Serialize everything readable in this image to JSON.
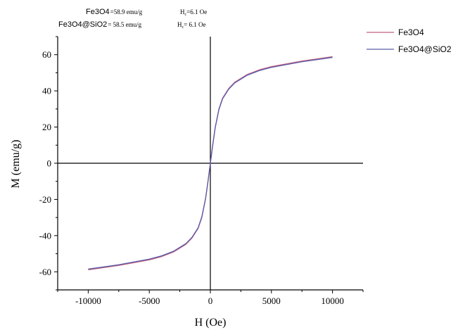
{
  "chart_data": {
    "type": "line",
    "xlabel": "H (Oe)",
    "ylabel": "M (emu/g)",
    "xlim": [
      -12500,
      12500
    ],
    "ylim": [
      -70,
      70
    ],
    "xticks": [
      -10000,
      -5000,
      0,
      5000,
      10000
    ],
    "yticks": [
      -60,
      -40,
      -20,
      0,
      20,
      40,
      60
    ],
    "xticklabels": [
      "-10000",
      "-5000",
      "0",
      "5000",
      "10000"
    ],
    "yticklabels": [
      "-60",
      "-40",
      "-20",
      "0",
      "20",
      "40",
      "60"
    ],
    "grid": false,
    "legend_position": "top-right",
    "annotations": [
      {
        "name": "Fe3O4",
        "ms": "=58.9 emu/g",
        "hc_prefix": "H",
        "hc_sub": "c",
        "hc_value": "=6.1 Oe"
      },
      {
        "name": "Fe3O4@SiO2",
        "ms": "= 58.5 emu/g",
        "hc_prefix": "H",
        "hc_sub": "c",
        "hc_value": "= 6.1 Oe"
      }
    ],
    "series": [
      {
        "name": "Fe3O4",
        "color": "#c06080",
        "x": [
          -10000,
          -7500,
          -5000,
          -4000,
          -3000,
          -2000,
          -1500,
          -1000,
          -700,
          -400,
          -200,
          0,
          200,
          400,
          700,
          1000,
          1500,
          2000,
          3000,
          4000,
          5000,
          7500,
          10000
        ],
        "y": [
          -58.9,
          -56.5,
          -53.4,
          -51.6,
          -49.0,
          -44.8,
          -41.3,
          -36.0,
          -30.0,
          -20.0,
          -10.5,
          0,
          10.5,
          20.0,
          30.0,
          36.0,
          41.3,
          44.8,
          49.0,
          51.6,
          53.4,
          56.5,
          58.9
        ]
      },
      {
        "name": "Fe3O4@SiO2",
        "color": "#5a5aa8",
        "x": [
          -10000,
          -7500,
          -5000,
          -4000,
          -3000,
          -2000,
          -1500,
          -1000,
          -700,
          -400,
          -200,
          0,
          200,
          400,
          700,
          1000,
          1500,
          2000,
          3000,
          4000,
          5000,
          7500,
          10000
        ],
        "y": [
          -58.5,
          -56.1,
          -53.0,
          -51.2,
          -48.6,
          -44.4,
          -40.9,
          -35.6,
          -29.6,
          -19.7,
          -10.3,
          0,
          10.3,
          19.7,
          29.6,
          35.6,
          40.9,
          44.4,
          48.6,
          51.2,
          53.0,
          56.1,
          58.5
        ]
      }
    ]
  }
}
